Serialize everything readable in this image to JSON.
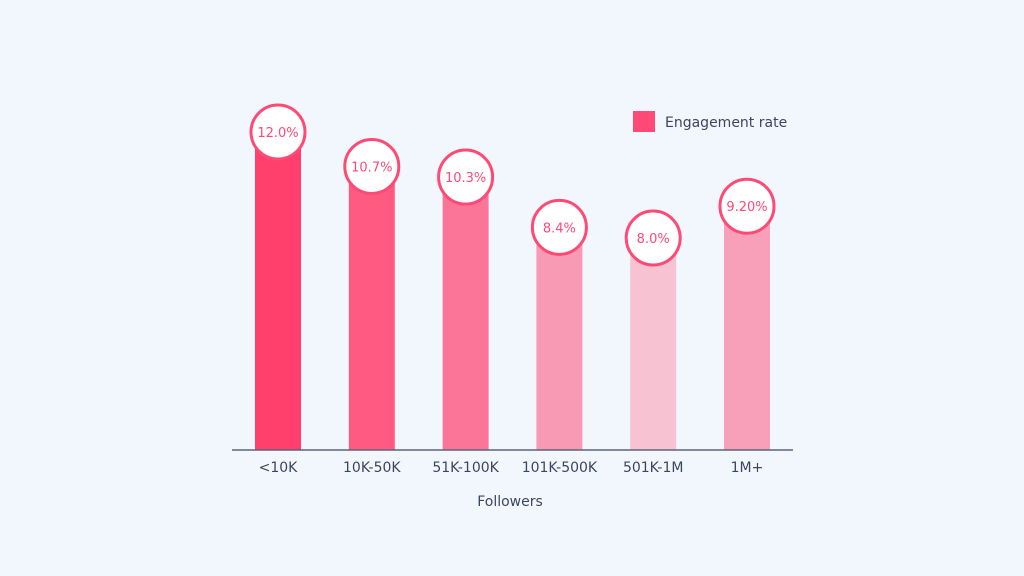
{
  "chart_data": {
    "type": "bar",
    "title": "",
    "xlabel": "Followers",
    "ylabel": "",
    "ylim": [
      0,
      12.0
    ],
    "grid": false,
    "legend_position": "top-right",
    "categories": [
      "<10K",
      "10K-50K",
      "51K-100K",
      "101K-500K",
      "501K-1M",
      "1M+"
    ],
    "series": [
      {
        "name": "Engagement rate",
        "values": [
          12.0,
          10.7,
          10.3,
          8.4,
          8.0,
          9.2
        ],
        "labels": [
          "12.0%",
          "10.7%",
          "10.3%",
          "8.4%",
          "8.0%",
          "9.20%"
        ],
        "colors": [
          "#ff3f6c",
          "#ff5a82",
          "#fb7598",
          "#f89ab4",
          "#f7c3d3",
          "#f8a0b9"
        ]
      }
    ],
    "accent_color": "#ff4a75",
    "axis_color": "#5a6478"
  }
}
